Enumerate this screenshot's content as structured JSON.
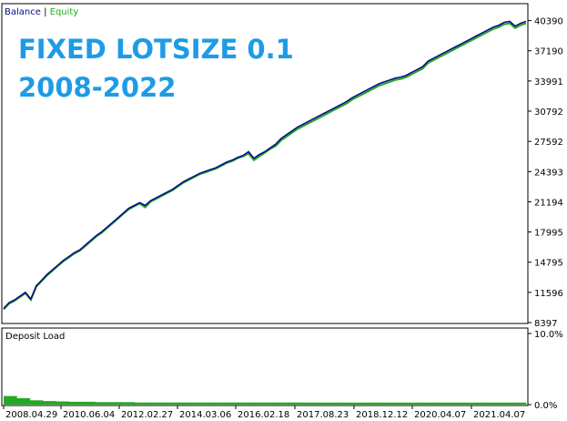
{
  "chart_data": {
    "type": "line",
    "legend": {
      "items": [
        {
          "name": "Balance",
          "color": "#0a0a8c"
        },
        {
          "name": "Equity",
          "color": "#22aa22"
        }
      ],
      "separator": " | "
    },
    "overlay_text": [
      "FIXED LOTSIZE 0.1",
      "2008-2022"
    ],
    "x_ticks": [
      "2008.04.29",
      "2010.06.04",
      "2012.02.27",
      "2014.03.06",
      "2016.02.18",
      "2017.08.23",
      "2018.12.12",
      "2020.04.07",
      "2021.04.07"
    ],
    "y_ticks": [
      "40390",
      "37190",
      "33991",
      "30792",
      "27592",
      "24393",
      "21194",
      "17995",
      "14795",
      "11596",
      "8397"
    ],
    "ylim": [
      8397,
      41990
    ],
    "series": [
      {
        "name": "Balance",
        "color": "#0a0a8c",
        "values": [
          9900,
          10500,
          10800,
          11200,
          11600,
          10900,
          12300,
          12900,
          13500,
          14000,
          14500,
          15000,
          15400,
          15800,
          16100,
          16600,
          17100,
          17600,
          18000,
          18500,
          19000,
          19500,
          20000,
          20500,
          20800,
          21100,
          20800,
          21300,
          21600,
          21900,
          22200,
          22500,
          22900,
          23300,
          23600,
          23900,
          24200,
          24400,
          24600,
          24800,
          25100,
          25400,
          25600,
          25900,
          26100,
          26500,
          25800,
          26200,
          26500,
          26900,
          27300,
          27900,
          28300,
          28700,
          29100,
          29400,
          29700,
          30000,
          30300,
          30600,
          30900,
          31200,
          31500,
          31800,
          32200,
          32500,
          32800,
          33100,
          33400,
          33700,
          33900,
          34100,
          34300,
          34400,
          34600,
          34900,
          35200,
          35500,
          36100,
          36400,
          36700,
          37000,
          37300,
          37600,
          37900,
          38200,
          38500,
          38800,
          39100,
          39400,
          39700,
          39900,
          40200,
          40300,
          39800,
          40100,
          40300
        ]
      },
      {
        "name": "Equity",
        "color": "#22aa22",
        "values": [
          9800,
          10400,
          10700,
          11100,
          11500,
          10800,
          12200,
          12800,
          13400,
          13900,
          14400,
          14900,
          15300,
          15700,
          16000,
          16500,
          17000,
          17500,
          17900,
          18400,
          18900,
          19400,
          19900,
          20400,
          20700,
          21000,
          20600,
          21200,
          21500,
          21800,
          22100,
          22400,
          22800,
          23200,
          23500,
          23800,
          24100,
          24300,
          24500,
          24700,
          25000,
          25300,
          25500,
          25800,
          26000,
          26300,
          25600,
          26000,
          26400,
          26800,
          27100,
          27700,
          28100,
          28500,
          28900,
          29200,
          29500,
          29800,
          30100,
          30400,
          30700,
          31000,
          31300,
          31600,
          32000,
          32300,
          32600,
          32900,
          33200,
          33500,
          33700,
          33900,
          34100,
          34200,
          34400,
          34700,
          35000,
          35300,
          35900,
          36200,
          36500,
          36800,
          37100,
          37400,
          37700,
          38000,
          38300,
          38600,
          38900,
          39200,
          39500,
          39700,
          40000,
          40100,
          39600,
          39900,
          40100
        ]
      }
    ],
    "deposit_load": {
      "label": "Deposit Load",
      "y_ticks": [
        "10.0%",
        "0.0%"
      ],
      "ylim": [
        0,
        10
      ],
      "color": "#22aa22",
      "values": [
        1.2,
        0.9,
        0.6,
        0.5,
        0.45,
        0.4,
        0.4,
        0.35,
        0.35,
        0.35,
        0.3,
        0.3,
        0.3,
        0.3,
        0.3,
        0.3,
        0.3,
        0.3,
        0.3,
        0.3,
        0.3,
        0.3,
        0.3,
        0.28,
        0.28,
        0.28,
        0.28,
        0.28,
        0.28,
        0.28,
        0.28,
        0.28,
        0.28,
        0.28,
        0.28,
        0.28,
        0.28,
        0.28,
        0.28,
        0.28
      ]
    }
  }
}
